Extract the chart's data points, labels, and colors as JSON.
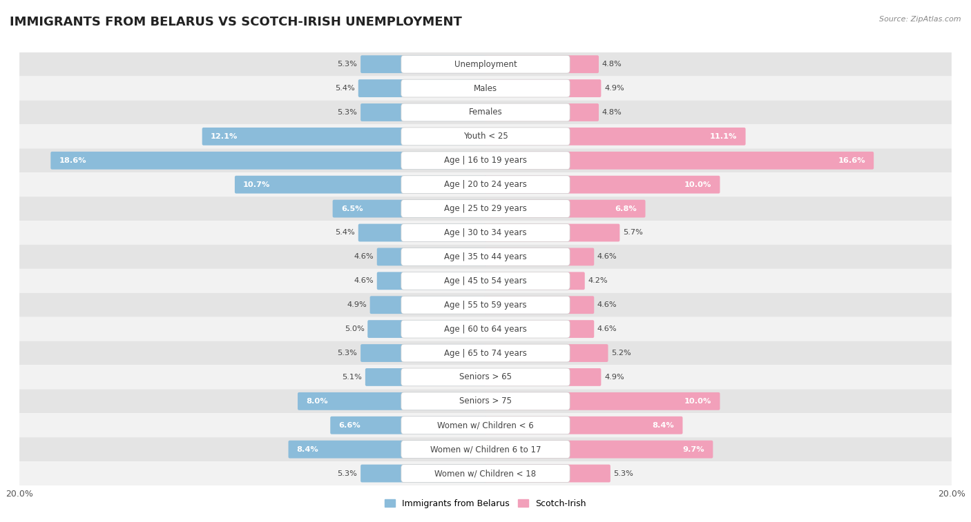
{
  "title": "IMMIGRANTS FROM BELARUS VS SCOTCH-IRISH UNEMPLOYMENT",
  "source": "Source: ZipAtlas.com",
  "categories": [
    "Unemployment",
    "Males",
    "Females",
    "Youth < 25",
    "Age | 16 to 19 years",
    "Age | 20 to 24 years",
    "Age | 25 to 29 years",
    "Age | 30 to 34 years",
    "Age | 35 to 44 years",
    "Age | 45 to 54 years",
    "Age | 55 to 59 years",
    "Age | 60 to 64 years",
    "Age | 65 to 74 years",
    "Seniors > 65",
    "Seniors > 75",
    "Women w/ Children < 6",
    "Women w/ Children 6 to 17",
    "Women w/ Children < 18"
  ],
  "belarus_values": [
    5.3,
    5.4,
    5.3,
    12.1,
    18.6,
    10.7,
    6.5,
    5.4,
    4.6,
    4.6,
    4.9,
    5.0,
    5.3,
    5.1,
    8.0,
    6.6,
    8.4,
    5.3
  ],
  "scotch_irish_values": [
    4.8,
    4.9,
    4.8,
    11.1,
    16.6,
    10.0,
    6.8,
    5.7,
    4.6,
    4.2,
    4.6,
    4.6,
    5.2,
    4.9,
    10.0,
    8.4,
    9.7,
    5.3
  ],
  "belarus_color": "#8bbcda",
  "scotch_irish_color": "#f2a0ba",
  "axis_max": 20.0,
  "bg_dark": "#e4e4e4",
  "bg_light": "#f2f2f2",
  "title_fontsize": 13,
  "label_fontsize": 8.5,
  "value_fontsize": 8.2,
  "legend_belarus": "Immigrants from Belarus",
  "legend_scotch": "Scotch-Irish"
}
